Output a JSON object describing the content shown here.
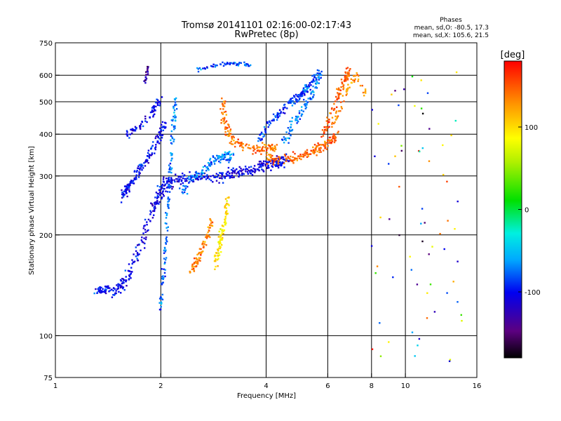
{
  "chart_data": {
    "type": "scatter",
    "title": "Tromsø 20141101 02:16:00-02:17:43",
    "subtitle": "RwPretec (8p)",
    "xlabel": "Frequency [MHz]",
    "ylabel": "Stationary phase Virtual Height [km]",
    "x_scale": "log",
    "y_scale": "log",
    "xlim": [
      1,
      16
    ],
    "ylim": [
      75,
      750
    ],
    "x_ticks": [
      1,
      2,
      4,
      6,
      8,
      10,
      16
    ],
    "x_tick_labels": [
      "1",
      "2",
      "4",
      "6",
      "8",
      "10",
      "16"
    ],
    "y_ticks": [
      75,
      100,
      200,
      300,
      400,
      500,
      600,
      750
    ],
    "y_tick_labels": [
      "75",
      "100",
      "200",
      "300",
      "400",
      "500",
      "600",
      "750"
    ],
    "x_gridlines": [
      2,
      4,
      6,
      8,
      10
    ],
    "y_gridlines": [
      100,
      200,
      300,
      400,
      500,
      600
    ],
    "grid": true,
    "phase_stats": {
      "heading": "Phases",
      "line1": "mean, sd,O: -80.5, 17.3",
      "line2": "mean, sd,X: 105.6, 21.5"
    },
    "colorbar": {
      "label": "[deg]",
      "range": [
        -180,
        180
      ],
      "ticks": [
        -100,
        0,
        100
      ],
      "tick_labels": [
        "-100",
        "0",
        "100"
      ],
      "colormap": "rainbow"
    },
    "traces": [
      {
        "x": [
          1.45,
          1.6,
          1.75,
          1.9,
          2.05,
          2.3,
          2.6,
          3.0,
          3.4,
          3.8,
          4.2,
          4.6
        ],
        "y": [
          130,
          150,
          185,
          240,
          285,
          295,
          298,
          300,
          308,
          318,
          328,
          338
        ],
        "phase": -105,
        "jitter": 0.06,
        "n": 460
      },
      {
        "x": [
          1.3,
          1.4,
          1.55
        ],
        "y": [
          135,
          138,
          140
        ],
        "phase": -100,
        "jitter": 0.05,
        "n": 50
      },
      {
        "x": [
          1.55,
          1.65,
          1.8,
          1.95,
          2.05
        ],
        "y": [
          260,
          290,
          330,
          380,
          430
        ],
        "phase": -100,
        "jitter": 0.05,
        "n": 150
      },
      {
        "x": [
          1.6,
          1.75,
          1.9,
          2.0
        ],
        "y": [
          400,
          420,
          470,
          520
        ],
        "phase": -105,
        "jitter": 0.04,
        "n": 70
      },
      {
        "x": [
          2.0,
          2.1,
          2.2
        ],
        "y": [
          120,
          250,
          520
        ],
        "phase": -75,
        "jitter": 0.03,
        "n": 140
      },
      {
        "x": [
          2.3,
          2.5,
          2.8,
          3.0,
          3.2
        ],
        "y": [
          270,
          300,
          330,
          340,
          345
        ],
        "phase": -70,
        "jitter": 0.05,
        "n": 120
      },
      {
        "x": [
          2.5,
          2.8,
          3.1,
          3.4,
          3.6
        ],
        "y": [
          620,
          640,
          650,
          650,
          640
        ],
        "phase": -80,
        "jitter": 0.02,
        "n": 60
      },
      {
        "x": [
          1.8,
          1.85
        ],
        "y": [
          570,
          650
        ],
        "phase": -130,
        "jitter": 0.02,
        "n": 20
      },
      {
        "x": [
          2.45,
          2.55,
          2.7,
          2.8
        ],
        "y": [
          155,
          170,
          195,
          220
        ],
        "phase": 135,
        "jitter": 0.04,
        "n": 80
      },
      {
        "x": [
          2.85,
          2.95,
          3.05,
          3.1
        ],
        "y": [
          160,
          190,
          220,
          260
        ],
        "phase": 95,
        "jitter": 0.04,
        "n": 90
      },
      {
        "x": [
          3.0,
          3.05,
          3.2,
          3.5,
          3.9,
          4.3
        ],
        "y": [
          520,
          430,
          385,
          365,
          360,
          370
        ],
        "phase": 140,
        "jitter": 0.05,
        "n": 140
      },
      {
        "x": [
          4.0,
          4.4,
          4.8,
          5.2,
          5.6,
          6.0,
          6.4
        ],
        "y": [
          340,
          335,
          340,
          350,
          360,
          380,
          400
        ],
        "phase": 145,
        "jitter": 0.05,
        "n": 160
      },
      {
        "x": [
          3.8,
          4.1,
          4.4,
          4.7,
          5.0,
          5.3,
          5.7
        ],
        "y": [
          380,
          430,
          470,
          500,
          520,
          560,
          620
        ],
        "phase": -85,
        "jitter": 0.04,
        "n": 160
      },
      {
        "x": [
          4.5,
          4.9,
          5.3,
          5.7
        ],
        "y": [
          380,
          450,
          510,
          600
        ],
        "phase": -70,
        "jitter": 0.05,
        "n": 90
      },
      {
        "x": [
          5.8,
          6.1,
          6.4,
          6.7,
          6.9
        ],
        "y": [
          400,
          450,
          520,
          580,
          620
        ],
        "phase": 150,
        "jitter": 0.04,
        "n": 90
      },
      {
        "x": [
          6.2,
          6.5,
          6.8,
          7.2,
          7.8
        ],
        "y": [
          420,
          480,
          550,
          600,
          520
        ],
        "phase": 130,
        "jitter": 0.05,
        "n": 60
      }
    ],
    "sparse_points": {
      "xlim": [
        7.6,
        14.5
      ],
      "ylim": [
        80,
        620
      ],
      "n": 70
    }
  }
}
